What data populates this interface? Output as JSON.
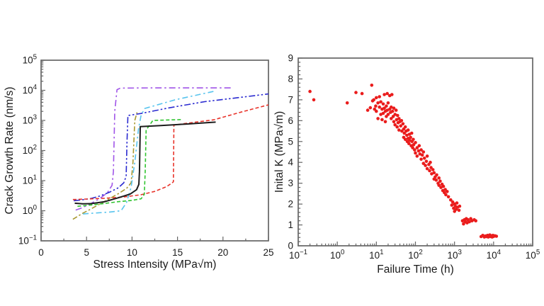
{
  "figure": {
    "background": "#ffffff",
    "spine_color": "#666666",
    "text_color": "#1a1a1a"
  },
  "chart_data": [
    {
      "id": "crack-growth-chart",
      "type": "line",
      "title": "",
      "xlabel": "Stress Intensity (MPa√m)",
      "ylabel": "Crack Growth Rate (nm/s)",
      "x_axis": {
        "scale": "linear",
        "min": 0,
        "max": 25,
        "major_ticks": [
          0,
          5,
          10,
          15,
          20,
          25
        ],
        "minor_step": 2.5
      },
      "y_axis": {
        "scale": "log",
        "min_exp": -1,
        "max_exp": 5
      },
      "grid": false,
      "legend": "none",
      "series": [
        {
          "name": "series-purple-dashdot",
          "color": "#a055e8",
          "dash": "9 4 2.5 4",
          "width": 1.6,
          "points": [
            [
              3.8,
              1.05
            ],
            [
              4.5,
              1.25
            ],
            [
              5.5,
              1.75
            ],
            [
              6.5,
              2.6
            ],
            [
              7.3,
              4
            ],
            [
              7.8,
              7
            ],
            [
              7.95,
              20
            ],
            [
              8.1,
              2000
            ],
            [
              8.35,
              10500
            ],
            [
              8.7,
              11800
            ],
            [
              12,
              12000
            ],
            [
              21,
              12000
            ]
          ]
        },
        {
          "name": "series-blue-dashdotdot",
          "color": "#2a2ad0",
          "dash": "9 3 2.5 3 2.5 3",
          "width": 1.6,
          "points": [
            [
              3.6,
              2.15
            ],
            [
              4.5,
              2.3
            ],
            [
              5.5,
              2.55
            ],
            [
              6.5,
              3.1
            ],
            [
              7.5,
              4.1
            ],
            [
              8.5,
              5.8
            ],
            [
              9.1,
              8.5
            ],
            [
              9.35,
              14
            ],
            [
              9.45,
              200
            ],
            [
              9.55,
              1450
            ],
            [
              11,
              1700
            ],
            [
              14,
              2600
            ],
            [
              18,
              4200
            ],
            [
              21,
              5400
            ],
            [
              25,
              7600
            ]
          ]
        },
        {
          "name": "series-olive-dashdot",
          "color": "#a89830",
          "dash": "7 3 2.5 3",
          "width": 1.6,
          "points": [
            [
              3.5,
              0.52
            ],
            [
              4.5,
              0.8
            ],
            [
              5.5,
              1.15
            ],
            [
              6.5,
              1.7
            ],
            [
              7.5,
              2.5
            ],
            [
              8.5,
              3.7
            ],
            [
              9.4,
              5.5
            ],
            [
              9.9,
              8.5
            ],
            [
              10.1,
              40
            ],
            [
              10.3,
              1000
            ],
            [
              10.55,
              1850
            ]
          ]
        },
        {
          "name": "series-cyan-dashdot",
          "color": "#58c4ee",
          "dash": "8 4 2.5 4",
          "width": 1.6,
          "points": [
            [
              4.6,
              0.78
            ],
            [
              6,
              0.84
            ],
            [
              7.5,
              0.9
            ],
            [
              8.8,
              1.0
            ],
            [
              9.4,
              1.9
            ],
            [
              9.9,
              6
            ],
            [
              10.3,
              40
            ],
            [
              10.7,
              500
            ],
            [
              11.0,
              1500
            ],
            [
              11.4,
              2500
            ],
            [
              14.8,
              4900
            ],
            [
              19.2,
              9500
            ]
          ]
        },
        {
          "name": "series-red-dash",
          "color": "#e8332a",
          "dash": "5 3",
          "width": 1.6,
          "points": [
            [
              3.5,
              2.35
            ],
            [
              5,
              2.45
            ],
            [
              7,
              2.6
            ],
            [
              9,
              2.85
            ],
            [
              11,
              3.4
            ],
            [
              12.5,
              4.4
            ],
            [
              13.8,
              6.3
            ],
            [
              14.45,
              8.6
            ],
            [
              14.55,
              9.2
            ],
            [
              14.6,
              700
            ],
            [
              16,
              800
            ],
            [
              19,
              1050
            ],
            [
              22,
              1900
            ],
            [
              25,
              3300
            ]
          ]
        },
        {
          "name": "series-green-dash",
          "color": "#30c430",
          "dash": "5 3",
          "width": 1.6,
          "points": [
            [
              4.0,
              1.4
            ],
            [
              5.5,
              1.55
            ],
            [
              7,
              1.75
            ],
            [
              8.5,
              2.0
            ],
            [
              10,
              2.2
            ],
            [
              11.0,
              2.5
            ],
            [
              11.35,
              3.5
            ],
            [
              11.45,
              20
            ],
            [
              11.55,
              480
            ],
            [
              12.3,
              1000
            ],
            [
              15.5,
              1070
            ]
          ]
        },
        {
          "name": "series-black-solid",
          "color": "#1c1c1c",
          "dash": "",
          "width": 2.0,
          "points": [
            [
              3.7,
              1.78
            ],
            [
              4.6,
              1.7
            ],
            [
              5.5,
              1.72
            ],
            [
              7,
              2.0
            ],
            [
              8.5,
              2.7
            ],
            [
              9.8,
              3.6
            ],
            [
              10.5,
              5
            ],
            [
              10.75,
              7.5
            ],
            [
              10.82,
              20
            ],
            [
              10.9,
              620
            ],
            [
              13,
              670
            ],
            [
              16,
              760
            ],
            [
              19.2,
              880
            ]
          ]
        }
      ]
    },
    {
      "id": "failure-time-chart",
      "type": "scatter",
      "title": "",
      "xlabel": "Failure Time (h)",
      "ylabel": "Inital K (MPa√m)",
      "x_axis": {
        "scale": "log",
        "min_exp": -1,
        "max_exp": 5
      },
      "y_axis": {
        "scale": "linear",
        "min": 0,
        "max": 9,
        "major_step": 1,
        "minor_step": 0.2
      },
      "grid": false,
      "legend": "none",
      "marker": {
        "shape": "circle",
        "radius": 2.3,
        "color": "#ea1c1c"
      },
      "points": [
        [
          0.2,
          7.4
        ],
        [
          0.25,
          7.0
        ],
        [
          1.8,
          6.85
        ],
        [
          3.0,
          7.35
        ],
        [
          4.3,
          7.3
        ],
        [
          6.0,
          6.5
        ],
        [
          7.0,
          6.62
        ],
        [
          7.6,
          7.7
        ],
        [
          8.0,
          6.95
        ],
        [
          8.6,
          7.0
        ],
        [
          9.0,
          6.55
        ],
        [
          9.6,
          6.7
        ],
        [
          10,
          7.1
        ],
        [
          10,
          6.45
        ],
        [
          11,
          6.85
        ],
        [
          11,
          6.1
        ],
        [
          12,
          6.65
        ],
        [
          12,
          7.15
        ],
        [
          13,
          6.3
        ],
        [
          13,
          6.9
        ],
        [
          14,
          6.55
        ],
        [
          14,
          6.05
        ],
        [
          15,
          6.8
        ],
        [
          15,
          6.35
        ],
        [
          16,
          7.25
        ],
        [
          16,
          6.6
        ],
        [
          17,
          6.45
        ],
        [
          17,
          5.95
        ],
        [
          18,
          6.7
        ],
        [
          18,
          6.2
        ],
        [
          19,
          7.3
        ],
        [
          19,
          6.5
        ],
        [
          20,
          6.85
        ],
        [
          20,
          6.3
        ],
        [
          22,
          7.2
        ],
        [
          22,
          6.55
        ],
        [
          23,
          6.4
        ],
        [
          24,
          6.65
        ],
        [
          24,
          6.1
        ],
        [
          25,
          7.25
        ],
        [
          26,
          6.45
        ],
        [
          27,
          6.2
        ],
        [
          28,
          6.6
        ],
        [
          28,
          5.95
        ],
        [
          30,
          6.3
        ],
        [
          30,
          5.8
        ],
        [
          32,
          6.5
        ],
        [
          33,
          6.05
        ],
        [
          34,
          5.7
        ],
        [
          35,
          6.25
        ],
        [
          36,
          5.9
        ],
        [
          38,
          6.1
        ],
        [
          38,
          5.55
        ],
        [
          40,
          5.95
        ],
        [
          42,
          5.75
        ],
        [
          44,
          6.0
        ],
        [
          45,
          5.5
        ],
        [
          48,
          5.85
        ],
        [
          50,
          5.6
        ],
        [
          50,
          5.2
        ],
        [
          52,
          5.4
        ],
        [
          55,
          5.7
        ],
        [
          55,
          5.1
        ],
        [
          58,
          5.5
        ],
        [
          60,
          5.3
        ],
        [
          62,
          5.0
        ],
        [
          65,
          5.55
        ],
        [
          65,
          5.15
        ],
        [
          68,
          4.9
        ],
        [
          70,
          5.35
        ],
        [
          72,
          5.05
        ],
        [
          75,
          5.2
        ],
        [
          78,
          4.8
        ],
        [
          80,
          5.4
        ],
        [
          82,
          5.0
        ],
        [
          85,
          4.7
        ],
        [
          88,
          5.1
        ],
        [
          90,
          4.85
        ],
        [
          95,
          4.6
        ],
        [
          100,
          4.95
        ],
        [
          100,
          4.45
        ],
        [
          110,
          4.7
        ],
        [
          110,
          4.3
        ],
        [
          120,
          4.55
        ],
        [
          125,
          4.8
        ],
        [
          130,
          4.4
        ],
        [
          140,
          4.6
        ],
        [
          140,
          4.15
        ],
        [
          150,
          4.35
        ],
        [
          160,
          4.5
        ],
        [
          160,
          3.95
        ],
        [
          170,
          4.2
        ],
        [
          180,
          3.85
        ],
        [
          190,
          4.05
        ],
        [
          200,
          4.3
        ],
        [
          200,
          3.7
        ],
        [
          220,
          3.9
        ],
        [
          230,
          3.6
        ],
        [
          240,
          4.0
        ],
        [
          250,
          3.75
        ],
        [
          260,
          3.45
        ],
        [
          280,
          3.65
        ],
        [
          300,
          3.5
        ],
        [
          300,
          3.2
        ],
        [
          320,
          3.3
        ],
        [
          340,
          3.15
        ],
        [
          350,
          3.4
        ],
        [
          380,
          3.0
        ],
        [
          400,
          3.25
        ],
        [
          400,
          2.9
        ],
        [
          430,
          3.1
        ],
        [
          450,
          2.8
        ],
        [
          480,
          2.95
        ],
        [
          500,
          2.65
        ],
        [
          520,
          2.85
        ],
        [
          550,
          2.55
        ],
        [
          580,
          2.7
        ],
        [
          600,
          2.45
        ],
        [
          650,
          2.6
        ],
        [
          700,
          2.35
        ],
        [
          800,
          2.2
        ],
        [
          850,
          1.95
        ],
        [
          900,
          2.1
        ],
        [
          950,
          1.8
        ],
        [
          1000,
          2.0
        ],
        [
          1000,
          1.65
        ],
        [
          1050,
          1.9
        ],
        [
          1100,
          1.75
        ],
        [
          1150,
          2.05
        ],
        [
          1200,
          1.85
        ],
        [
          1300,
          1.7
        ],
        [
          1350,
          1.9
        ],
        [
          1600,
          1.2
        ],
        [
          1700,
          1.05
        ],
        [
          1800,
          1.25
        ],
        [
          1900,
          1.15
        ],
        [
          2000,
          1.3
        ],
        [
          2100,
          1.1
        ],
        [
          2200,
          1.25
        ],
        [
          2400,
          1.15
        ],
        [
          2600,
          1.3
        ],
        [
          2800,
          1.2
        ],
        [
          3200,
          1.25
        ],
        [
          3500,
          1.2
        ],
        [
          4800,
          0.44
        ],
        [
          5300,
          0.5
        ],
        [
          5800,
          0.42
        ],
        [
          6200,
          0.47
        ],
        [
          6600,
          0.44
        ],
        [
          7000,
          0.5
        ],
        [
          7300,
          0.42
        ],
        [
          7700,
          0.47
        ],
        [
          8000,
          0.52
        ],
        [
          8400,
          0.44
        ],
        [
          8800,
          0.48
        ],
        [
          9200,
          0.42
        ],
        [
          9600,
          0.5
        ],
        [
          10000,
          0.45
        ],
        [
          10800,
          0.48
        ],
        [
          11800,
          0.46
        ]
      ]
    }
  ]
}
